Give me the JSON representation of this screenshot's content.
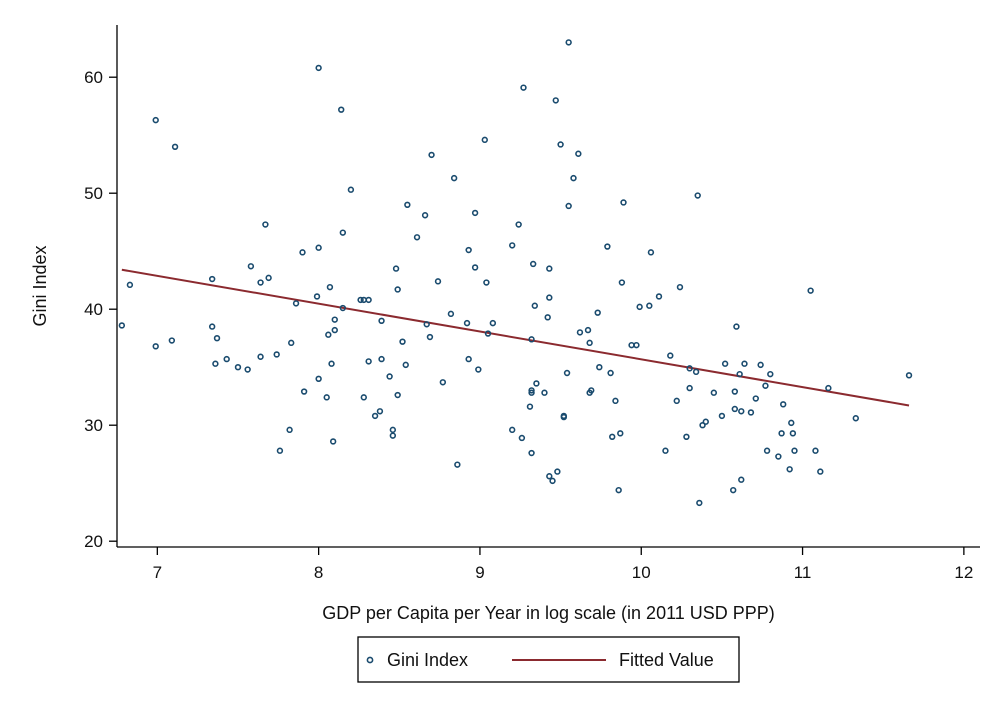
{
  "chart_data": {
    "type": "scatter",
    "xlabel": "GDP per Capita per Year in log scale (in 2011 USD PPP)",
    "ylabel": "Gini Index",
    "xlim": [
      6.75,
      12.1
    ],
    "ylim": [
      19.5,
      64.5
    ],
    "xticks": [
      7,
      8,
      9,
      10,
      11,
      12
    ],
    "yticks": [
      20,
      30,
      40,
      50,
      60
    ],
    "grid": false,
    "legend_position": "bottom",
    "series": [
      {
        "name": "Gini Index",
        "kind": "scatter",
        "marker": "hollow-circle",
        "color": "#1a4b6e",
        "points": [
          [
            6.78,
            38.6
          ],
          [
            6.83,
            42.1
          ],
          [
            6.99,
            56.3
          ],
          [
            6.99,
            36.8
          ],
          [
            7.09,
            37.3
          ],
          [
            7.11,
            54.0
          ],
          [
            7.34,
            42.6
          ],
          [
            7.34,
            38.5
          ],
          [
            7.36,
            35.3
          ],
          [
            7.37,
            37.5
          ],
          [
            7.43,
            35.7
          ],
          [
            7.5,
            35.0
          ],
          [
            7.56,
            34.8
          ],
          [
            7.58,
            43.7
          ],
          [
            7.64,
            35.9
          ],
          [
            7.64,
            42.3
          ],
          [
            7.67,
            47.3
          ],
          [
            7.69,
            42.7
          ],
          [
            7.74,
            36.1
          ],
          [
            7.76,
            27.8
          ],
          [
            7.82,
            29.6
          ],
          [
            7.83,
            37.1
          ],
          [
            7.86,
            40.5
          ],
          [
            7.9,
            44.9
          ],
          [
            7.91,
            32.9
          ],
          [
            7.99,
            41.1
          ],
          [
            8.0,
            45.3
          ],
          [
            8.0,
            34.0
          ],
          [
            8.0,
            60.8
          ],
          [
            8.05,
            32.4
          ],
          [
            8.06,
            37.8
          ],
          [
            8.07,
            41.9
          ],
          [
            8.08,
            35.3
          ],
          [
            8.09,
            28.6
          ],
          [
            8.1,
            38.2
          ],
          [
            8.1,
            39.1
          ],
          [
            8.14,
            57.2
          ],
          [
            8.15,
            46.6
          ],
          [
            8.15,
            40.1
          ],
          [
            8.2,
            50.3
          ],
          [
            8.26,
            40.8
          ],
          [
            8.28,
            40.8
          ],
          [
            8.28,
            32.4
          ],
          [
            8.31,
            40.8
          ],
          [
            8.31,
            35.5
          ],
          [
            8.35,
            30.8
          ],
          [
            8.38,
            31.2
          ],
          [
            8.39,
            35.7
          ],
          [
            8.39,
            39.0
          ],
          [
            8.44,
            34.2
          ],
          [
            8.46,
            29.1
          ],
          [
            8.46,
            29.6
          ],
          [
            8.48,
            43.5
          ],
          [
            8.49,
            41.7
          ],
          [
            8.49,
            32.6
          ],
          [
            8.52,
            37.2
          ],
          [
            8.54,
            35.2
          ],
          [
            8.55,
            49.0
          ],
          [
            8.61,
            46.2
          ],
          [
            8.66,
            48.1
          ],
          [
            8.67,
            38.7
          ],
          [
            8.69,
            37.6
          ],
          [
            8.7,
            53.3
          ],
          [
            8.74,
            42.4
          ],
          [
            8.77,
            33.7
          ],
          [
            8.82,
            39.6
          ],
          [
            8.84,
            51.3
          ],
          [
            8.86,
            26.6
          ],
          [
            8.92,
            38.8
          ],
          [
            8.93,
            45.1
          ],
          [
            8.93,
            35.7
          ],
          [
            8.97,
            48.3
          ],
          [
            8.97,
            43.6
          ],
          [
            8.99,
            34.8
          ],
          [
            9.03,
            54.6
          ],
          [
            9.04,
            42.3
          ],
          [
            9.05,
            37.9
          ],
          [
            9.08,
            38.8
          ],
          [
            9.2,
            45.5
          ],
          [
            9.2,
            29.6
          ],
          [
            9.24,
            47.3
          ],
          [
            9.26,
            28.9
          ],
          [
            9.27,
            59.1
          ],
          [
            9.31,
            31.6
          ],
          [
            9.32,
            33.0
          ],
          [
            9.32,
            32.8
          ],
          [
            9.32,
            37.4
          ],
          [
            9.32,
            27.6
          ],
          [
            9.33,
            43.9
          ],
          [
            9.34,
            40.3
          ],
          [
            9.35,
            33.6
          ],
          [
            9.4,
            32.8
          ],
          [
            9.42,
            39.3
          ],
          [
            9.43,
            43.5
          ],
          [
            9.43,
            41.0
          ],
          [
            9.43,
            25.6
          ],
          [
            9.45,
            25.2
          ],
          [
            9.47,
            58.0
          ],
          [
            9.48,
            26.0
          ],
          [
            9.5,
            54.2
          ],
          [
            9.52,
            30.8
          ],
          [
            9.52,
            30.7
          ],
          [
            9.54,
            34.5
          ],
          [
            9.55,
            63.0
          ],
          [
            9.55,
            48.9
          ],
          [
            9.58,
            51.3
          ],
          [
            9.61,
            53.4
          ],
          [
            9.62,
            38.0
          ],
          [
            9.67,
            38.2
          ],
          [
            9.68,
            37.1
          ],
          [
            9.68,
            32.8
          ],
          [
            9.69,
            33.0
          ],
          [
            9.73,
            39.7
          ],
          [
            9.74,
            35.0
          ],
          [
            9.79,
            45.4
          ],
          [
            9.81,
            34.5
          ],
          [
            9.82,
            29.0
          ],
          [
            9.84,
            32.1
          ],
          [
            9.86,
            24.4
          ],
          [
            9.87,
            29.3
          ],
          [
            9.88,
            42.3
          ],
          [
            9.89,
            49.2
          ],
          [
            9.94,
            36.9
          ],
          [
            9.97,
            36.9
          ],
          [
            9.99,
            40.2
          ],
          [
            10.05,
            40.3
          ],
          [
            10.06,
            44.9
          ],
          [
            10.11,
            41.1
          ],
          [
            10.15,
            27.8
          ],
          [
            10.18,
            36.0
          ],
          [
            10.22,
            32.1
          ],
          [
            10.24,
            41.9
          ],
          [
            10.28,
            29.0
          ],
          [
            10.3,
            33.2
          ],
          [
            10.3,
            34.9
          ],
          [
            10.34,
            34.6
          ],
          [
            10.35,
            49.8
          ],
          [
            10.36,
            23.3
          ],
          [
            10.38,
            30.0
          ],
          [
            10.4,
            30.3
          ],
          [
            10.45,
            32.8
          ],
          [
            10.5,
            30.8
          ],
          [
            10.52,
            35.3
          ],
          [
            10.57,
            24.4
          ],
          [
            10.58,
            32.9
          ],
          [
            10.58,
            31.4
          ],
          [
            10.59,
            38.5
          ],
          [
            10.61,
            34.4
          ],
          [
            10.62,
            25.3
          ],
          [
            10.62,
            31.2
          ],
          [
            10.64,
            35.3
          ],
          [
            10.68,
            31.1
          ],
          [
            10.71,
            32.3
          ],
          [
            10.74,
            35.2
          ],
          [
            10.77,
            33.4
          ],
          [
            10.78,
            27.8
          ],
          [
            10.8,
            34.4
          ],
          [
            10.85,
            27.3
          ],
          [
            10.87,
            29.3
          ],
          [
            10.88,
            31.8
          ],
          [
            10.92,
            26.2
          ],
          [
            10.93,
            30.2
          ],
          [
            10.94,
            29.3
          ],
          [
            10.95,
            27.8
          ],
          [
            11.05,
            41.6
          ],
          [
            11.08,
            27.8
          ],
          [
            11.11,
            26.0
          ],
          [
            11.16,
            33.2
          ],
          [
            11.33,
            30.6
          ],
          [
            11.66,
            34.3
          ]
        ]
      },
      {
        "name": "Fitted Value",
        "kind": "line",
        "color": "#8b2a2f",
        "points": [
          [
            6.78,
            43.4
          ],
          [
            11.66,
            31.7
          ]
        ]
      }
    ]
  }
}
